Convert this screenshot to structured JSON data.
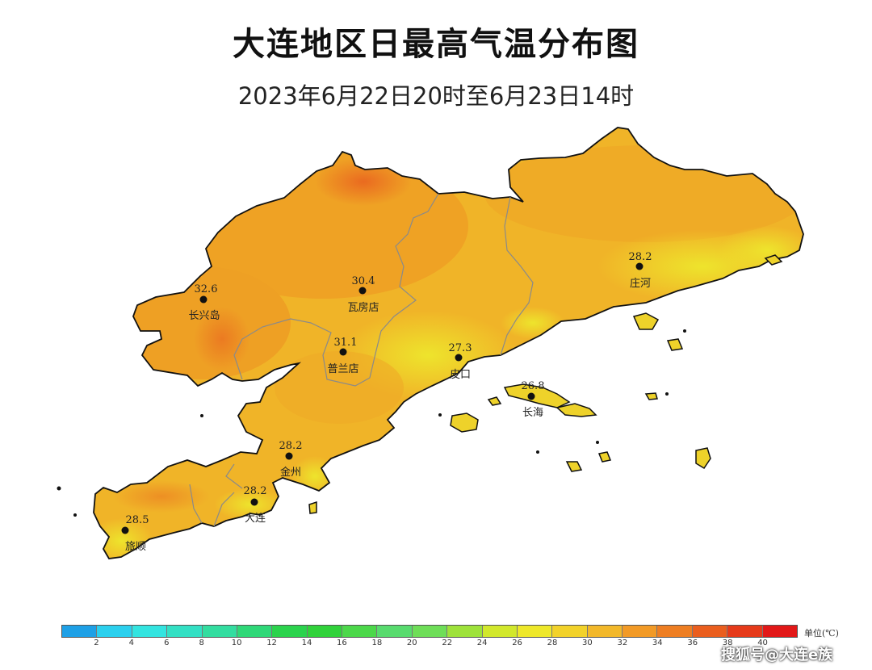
{
  "title": "大连地区日最高气温分布图",
  "subtitle": "2023年6月22日20时至6月23日14时",
  "stations": [
    {
      "value": "30.4",
      "name": "瓦房店"
    },
    {
      "value": "31.1",
      "name": "普兰店"
    },
    {
      "value": "27.3",
      "name": "皮口"
    },
    {
      "value": "28.2",
      "name": "庄河"
    },
    {
      "value": "26.8",
      "name": "长海"
    },
    {
      "value": "32.6",
      "name": "长兴岛"
    },
    {
      "value": "28.2",
      "name": "金州"
    },
    {
      "value": "28.2",
      "name": "大连"
    },
    {
      "value": "28.5",
      "name": "旅顺"
    }
  ],
  "legend": {
    "unit": "单位(℃)",
    "ticks": [
      "2",
      "4",
      "6",
      "8",
      "10",
      "12",
      "14",
      "16",
      "18",
      "20",
      "22",
      "24",
      "26",
      "28",
      "30",
      "32",
      "34",
      "36",
      "38",
      "40"
    ],
    "colors": [
      "#1ea0e6",
      "#2bd0ee",
      "#33e4e0",
      "#33e0c4",
      "#33dda0",
      "#2fd878",
      "#2bd34d",
      "#30d23a",
      "#4cd84a",
      "#58db6e",
      "#6ede58",
      "#9ee23a",
      "#d2e82c",
      "#eee82a",
      "#f2d22a",
      "#f2b82a",
      "#f29a26",
      "#ee7e22",
      "#ea5e1e",
      "#e63a1a",
      "#e21818"
    ]
  },
  "watermark": "搜狐号@大连e族"
}
